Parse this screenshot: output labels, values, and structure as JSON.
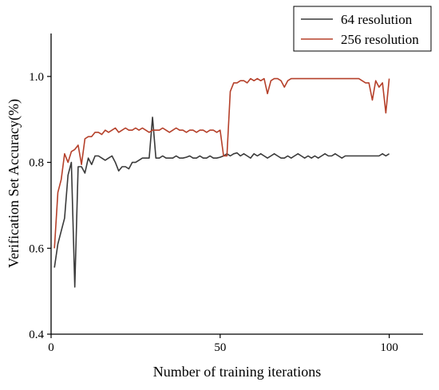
{
  "chart_data": {
    "type": "line",
    "title": "",
    "xlabel": "Number of training iterations",
    "ylabel": "Verification Set Accuracy(%)",
    "xlim": [
      0,
      110
    ],
    "ylim": [
      0.4,
      1.1
    ],
    "xticks": [
      "0",
      "50",
      "100"
    ],
    "yticks": [
      "0.4",
      "0.6",
      "0.8",
      "1.0"
    ],
    "grid": false,
    "legend_position": "top-right",
    "series": [
      {
        "name": "64 resolution",
        "color": "#3a3a3a",
        "x": [
          1,
          2,
          3,
          4,
          5,
          6,
          7,
          8,
          9,
          10,
          11,
          12,
          13,
          14,
          15,
          16,
          17,
          18,
          19,
          20,
          21,
          22,
          23,
          24,
          25,
          26,
          27,
          28,
          29,
          30,
          31,
          32,
          33,
          34,
          35,
          36,
          37,
          38,
          39,
          40,
          41,
          42,
          43,
          44,
          45,
          46,
          47,
          48,
          49,
          50,
          51,
          52,
          53,
          54,
          55,
          56,
          57,
          58,
          59,
          60,
          61,
          62,
          63,
          64,
          65,
          66,
          67,
          68,
          69,
          70,
          71,
          72,
          73,
          74,
          75,
          76,
          77,
          78,
          79,
          80,
          81,
          82,
          83,
          84,
          85,
          86,
          87,
          88,
          89,
          90,
          91,
          92,
          93,
          94,
          95,
          96,
          97,
          98,
          99,
          100
        ],
        "y": [
          0.555,
          0.61,
          0.64,
          0.67,
          0.77,
          0.8,
          0.51,
          0.79,
          0.79,
          0.775,
          0.81,
          0.795,
          0.815,
          0.815,
          0.81,
          0.805,
          0.81,
          0.815,
          0.8,
          0.78,
          0.79,
          0.79,
          0.785,
          0.8,
          0.8,
          0.805,
          0.81,
          0.81,
          0.81,
          0.905,
          0.81,
          0.81,
          0.815,
          0.81,
          0.81,
          0.81,
          0.815,
          0.81,
          0.81,
          0.812,
          0.815,
          0.81,
          0.81,
          0.815,
          0.81,
          0.81,
          0.815,
          0.81,
          0.81,
          0.812,
          0.815,
          0.82,
          0.815,
          0.82,
          0.822,
          0.815,
          0.82,
          0.815,
          0.81,
          0.82,
          0.815,
          0.82,
          0.815,
          0.81,
          0.815,
          0.82,
          0.815,
          0.81,
          0.81,
          0.815,
          0.81,
          0.815,
          0.82,
          0.815,
          0.81,
          0.815,
          0.81,
          0.815,
          0.81,
          0.815,
          0.82,
          0.815,
          0.815,
          0.82,
          0.815,
          0.81,
          0.815,
          0.815,
          0.815,
          0.815,
          0.815,
          0.815,
          0.815,
          0.815,
          0.815,
          0.815,
          0.815,
          0.82,
          0.815,
          0.82
        ]
      },
      {
        "name": "256 resolution",
        "color": "#b5402a",
        "x": [
          1,
          2,
          3,
          4,
          5,
          6,
          7,
          8,
          9,
          10,
          11,
          12,
          13,
          14,
          15,
          16,
          17,
          18,
          19,
          20,
          21,
          22,
          23,
          24,
          25,
          26,
          27,
          28,
          29,
          30,
          31,
          32,
          33,
          34,
          35,
          36,
          37,
          38,
          39,
          40,
          41,
          42,
          43,
          44,
          45,
          46,
          47,
          48,
          49,
          50,
          51,
          52,
          53,
          54,
          55,
          56,
          57,
          58,
          59,
          60,
          61,
          62,
          63,
          64,
          65,
          66,
          67,
          68,
          69,
          70,
          71,
          72,
          73,
          74,
          75,
          76,
          77,
          78,
          79,
          80,
          81,
          82,
          83,
          84,
          85,
          86,
          87,
          88,
          89,
          90,
          91,
          92,
          93,
          94,
          95,
          96,
          97,
          98,
          99,
          100
        ],
        "y": [
          0.6,
          0.73,
          0.76,
          0.82,
          0.8,
          0.825,
          0.83,
          0.84,
          0.795,
          0.855,
          0.86,
          0.86,
          0.87,
          0.87,
          0.865,
          0.875,
          0.87,
          0.875,
          0.88,
          0.87,
          0.875,
          0.88,
          0.875,
          0.875,
          0.88,
          0.875,
          0.88,
          0.875,
          0.87,
          0.875,
          0.875,
          0.875,
          0.88,
          0.875,
          0.87,
          0.875,
          0.88,
          0.875,
          0.875,
          0.87,
          0.875,
          0.875,
          0.87,
          0.875,
          0.875,
          0.87,
          0.875,
          0.875,
          0.87,
          0.875,
          0.815,
          0.815,
          0.965,
          0.985,
          0.985,
          0.99,
          0.99,
          0.985,
          0.995,
          0.99,
          0.995,
          0.99,
          0.995,
          0.96,
          0.99,
          0.995,
          0.995,
          0.99,
          0.975,
          0.99,
          0.995,
          0.995,
          0.995,
          0.995,
          0.995,
          0.995,
          0.995,
          0.995,
          0.995,
          0.995,
          0.995,
          0.995,
          0.995,
          0.995,
          0.995,
          0.995,
          0.995,
          0.995,
          0.995,
          0.995,
          0.995,
          0.99,
          0.985,
          0.985,
          0.945,
          0.99,
          0.975,
          0.985,
          0.915,
          0.995
        ]
      }
    ]
  }
}
